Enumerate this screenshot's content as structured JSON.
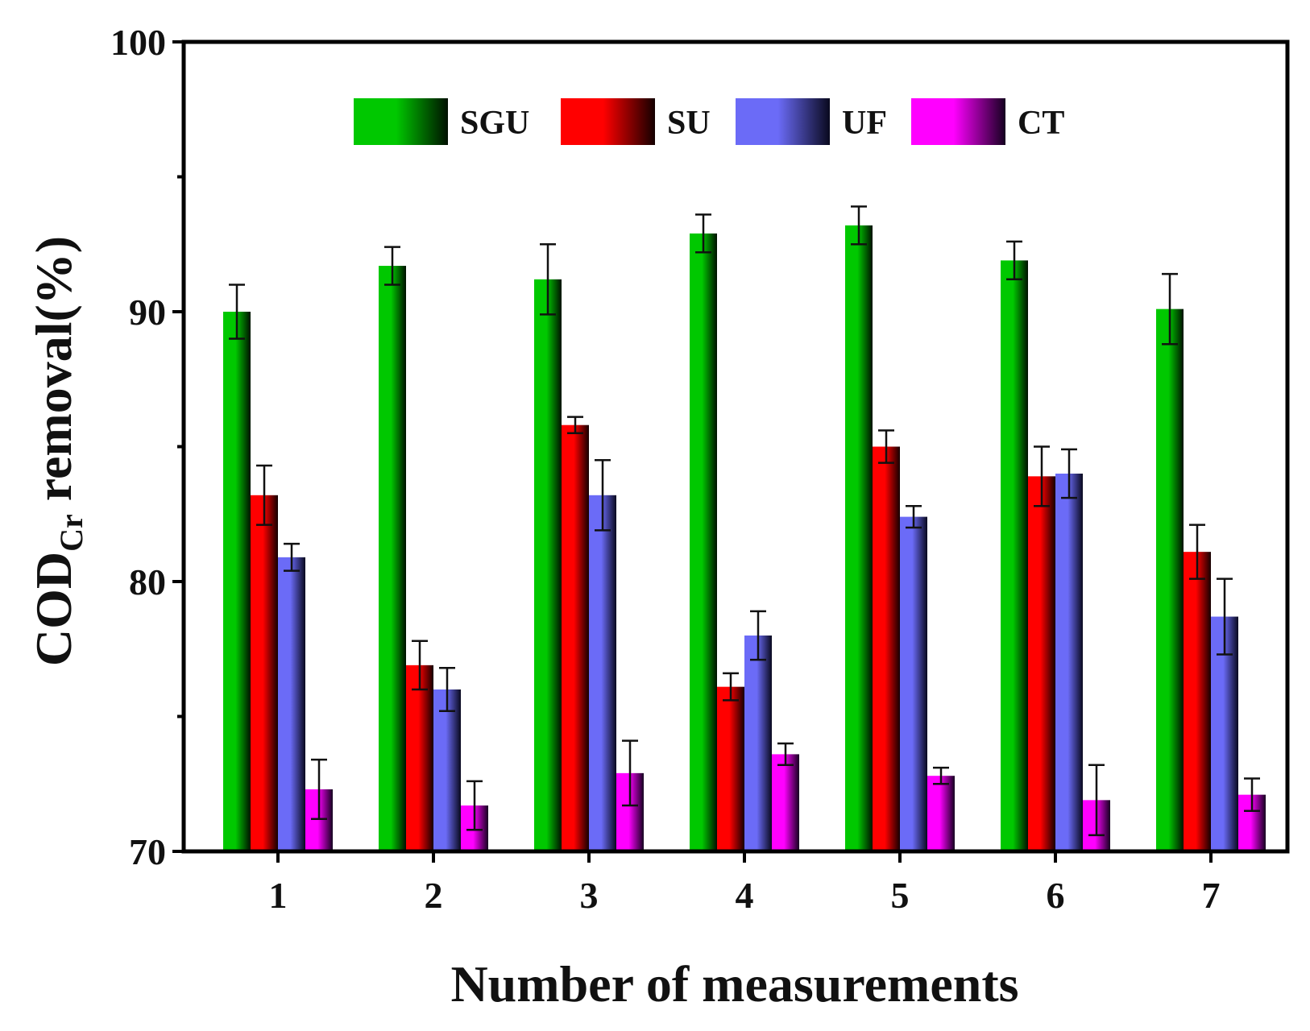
{
  "chart_data": {
    "type": "bar",
    "title": "",
    "xlabel": "Number of measurements",
    "ylabel": {
      "main": "COD",
      "subscript": "Cr",
      "rest": " removal(%)"
    },
    "ylim": [
      70,
      100
    ],
    "yticks": [
      "70",
      "80",
      "90",
      "100"
    ],
    "categories": [
      "1",
      "2",
      "3",
      "4",
      "5",
      "6",
      "7"
    ],
    "legend_position": "top-center",
    "series": [
      {
        "name": "SGU",
        "color": "#00c800",
        "values": [
          90.0,
          91.7,
          91.2,
          92.9,
          93.2,
          91.9,
          90.1
        ],
        "errors": [
          1.0,
          0.7,
          1.3,
          0.7,
          0.7,
          0.7,
          1.3
        ]
      },
      {
        "name": "SU",
        "color": "#ff0000",
        "values": [
          83.2,
          76.9,
          85.8,
          76.1,
          85.0,
          83.9,
          81.1
        ],
        "errors": [
          1.1,
          0.9,
          0.3,
          0.5,
          0.6,
          1.1,
          1.0
        ]
      },
      {
        "name": "UF",
        "color": "#6b6bf7",
        "values": [
          80.9,
          76.0,
          83.2,
          78.0,
          82.4,
          84.0,
          78.7
        ],
        "errors": [
          0.5,
          0.8,
          1.3,
          0.9,
          0.4,
          0.9,
          1.4
        ]
      },
      {
        "name": "CT",
        "color": "#ff00ff",
        "values": [
          72.3,
          71.7,
          72.9,
          73.6,
          72.8,
          71.9,
          72.1
        ],
        "errors": [
          1.1,
          0.9,
          1.2,
          0.4,
          0.3,
          1.3,
          0.6
        ]
      }
    ]
  }
}
